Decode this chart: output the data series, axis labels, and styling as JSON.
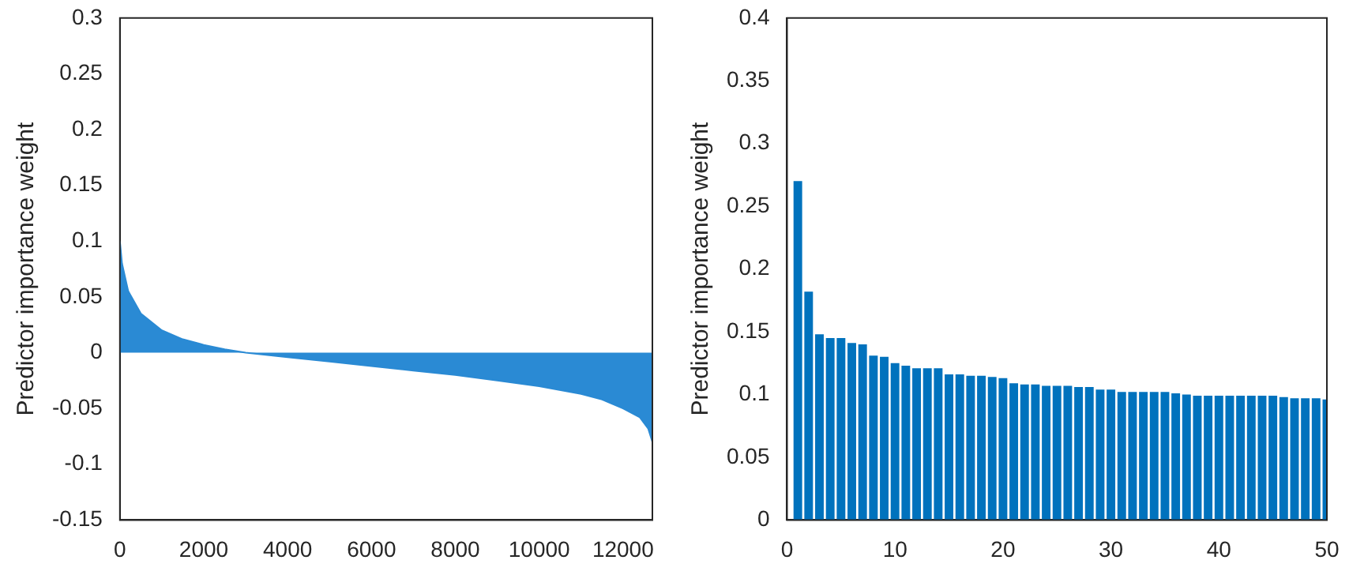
{
  "chart_data": [
    {
      "type": "area",
      "ylabel": "Predictor importance weight",
      "xlim": [
        0,
        12700
      ],
      "xticks": [
        0,
        2000,
        4000,
        6000,
        8000,
        10000,
        12000
      ],
      "ylim": [
        -0.15,
        0.3
      ],
      "yticks": [
        -0.15,
        -0.1,
        -0.05,
        0,
        0.05,
        0.1,
        0.15,
        0.2,
        0.25,
        0.3
      ],
      "grid": false,
      "legend": false,
      "series": [
        {
          "color": "#2a8ad4",
          "x": [
            0,
            50,
            200,
            500,
            1000,
            1500,
            2000,
            2500,
            3000,
            4000,
            5000,
            6000,
            7000,
            8000,
            9000,
            10000,
            11000,
            11500,
            12000,
            12400,
            12600,
            12700
          ],
          "values": [
            0.1,
            0.08,
            0.055,
            0.035,
            0.02,
            0.012,
            0.007,
            0.003,
            0.0,
            -0.004,
            -0.008,
            -0.012,
            -0.016,
            -0.02,
            -0.025,
            -0.03,
            -0.037,
            -0.042,
            -0.05,
            -0.058,
            -0.068,
            -0.08
          ]
        }
      ]
    },
    {
      "type": "bar",
      "ylabel": "Predictor importance weight",
      "xlim": [
        0,
        50
      ],
      "xticks": [
        0,
        10,
        20,
        30,
        40,
        50
      ],
      "ylim": [
        0,
        0.4
      ],
      "yticks": [
        0,
        0.05,
        0.1,
        0.15,
        0.2,
        0.25,
        0.3,
        0.35,
        0.4
      ],
      "grid": false,
      "legend": false,
      "series": [
        {
          "color": "#0072bd",
          "x": [
            1,
            2,
            3,
            4,
            5,
            6,
            7,
            8,
            9,
            10,
            11,
            12,
            13,
            14,
            15,
            16,
            17,
            18,
            19,
            20,
            21,
            22,
            23,
            24,
            25,
            26,
            27,
            28,
            29,
            30,
            31,
            32,
            33,
            34,
            35,
            36,
            37,
            38,
            39,
            40,
            41,
            42,
            43,
            44,
            45,
            46,
            47,
            48,
            49,
            50
          ],
          "values": [
            0.27,
            0.182,
            0.148,
            0.145,
            0.145,
            0.141,
            0.14,
            0.131,
            0.13,
            0.125,
            0.123,
            0.121,
            0.121,
            0.121,
            0.116,
            0.116,
            0.115,
            0.115,
            0.114,
            0.113,
            0.109,
            0.108,
            0.108,
            0.107,
            0.107,
            0.107,
            0.106,
            0.106,
            0.104,
            0.104,
            0.102,
            0.102,
            0.102,
            0.102,
            0.102,
            0.101,
            0.1,
            0.099,
            0.099,
            0.099,
            0.099,
            0.099,
            0.099,
            0.099,
            0.099,
            0.098,
            0.097,
            0.097,
            0.097,
            0.096
          ]
        }
      ]
    }
  ]
}
